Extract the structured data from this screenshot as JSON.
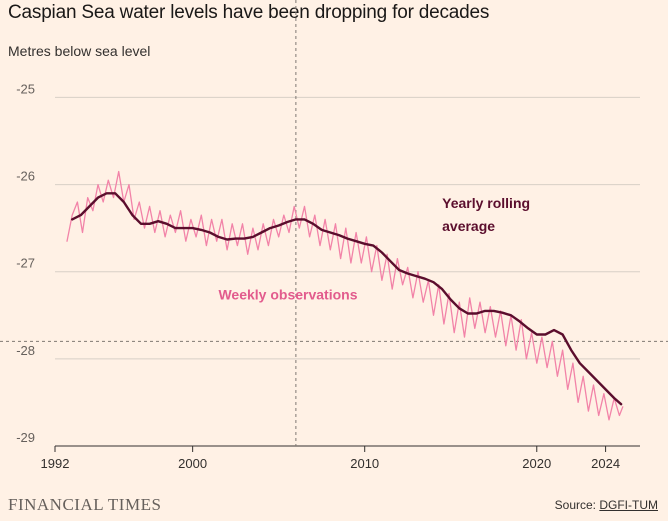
{
  "chart_data": {
    "type": "line",
    "title": "Caspian Sea water levels have been dropping for decades",
    "ylabel": "Metres below sea level",
    "xlim": [
      1992,
      2026
    ],
    "ylim": [
      -29,
      -24.8
    ],
    "yticks": [
      -25,
      -26,
      -27,
      -28,
      -29
    ],
    "xticks": [
      1992,
      2000,
      2010,
      2020,
      2024
    ],
    "grid": true,
    "reference_lines": {
      "x": 2006.0,
      "y": -27.8
    },
    "series": [
      {
        "name": "Weekly observations",
        "color": "#f283a8",
        "x": [
          1992.7,
          1993.0,
          1993.3,
          1993.6,
          1993.9,
          1994.2,
          1994.5,
          1994.8,
          1995.1,
          1995.4,
          1995.7,
          1996.0,
          1996.3,
          1996.6,
          1996.9,
          1997.2,
          1997.5,
          1997.8,
          1998.1,
          1998.4,
          1998.7,
          1999.0,
          1999.3,
          1999.6,
          1999.9,
          2000.2,
          2000.5,
          2000.8,
          2001.1,
          2001.4,
          2001.7,
          2002.0,
          2002.3,
          2002.6,
          2002.9,
          2003.2,
          2003.5,
          2003.8,
          2004.1,
          2004.4,
          2004.7,
          2005.0,
          2005.3,
          2005.6,
          2005.9,
          2006.2,
          2006.5,
          2006.8,
          2007.1,
          2007.4,
          2007.7,
          2008.0,
          2008.3,
          2008.6,
          2008.9,
          2009.2,
          2009.5,
          2009.8,
          2010.1,
          2010.4,
          2010.7,
          2011.0,
          2011.3,
          2011.6,
          2011.9,
          2012.2,
          2012.5,
          2012.8,
          2013.1,
          2013.4,
          2013.7,
          2014.0,
          2014.3,
          2014.6,
          2014.9,
          2015.2,
          2015.5,
          2015.8,
          2016.1,
          2016.4,
          2016.7,
          2017.0,
          2017.3,
          2017.6,
          2017.9,
          2018.2,
          2018.5,
          2018.8,
          2019.1,
          2019.4,
          2019.7,
          2020.0,
          2020.3,
          2020.6,
          2020.9,
          2021.2,
          2021.5,
          2021.8,
          2022.1,
          2022.4,
          2022.7,
          2023.0,
          2023.3,
          2023.6,
          2023.9,
          2024.2,
          2024.5,
          2024.8,
          2025.0
        ],
        "values": [
          -26.65,
          -26.35,
          -26.2,
          -26.55,
          -26.15,
          -26.3,
          -26.0,
          -26.2,
          -25.95,
          -26.15,
          -25.85,
          -26.2,
          -26.0,
          -26.4,
          -26.2,
          -26.5,
          -26.25,
          -26.55,
          -26.3,
          -26.6,
          -26.35,
          -26.55,
          -26.3,
          -26.65,
          -26.4,
          -26.6,
          -26.35,
          -26.7,
          -26.4,
          -26.65,
          -26.4,
          -26.75,
          -26.45,
          -26.7,
          -26.45,
          -26.8,
          -26.5,
          -26.75,
          -26.45,
          -26.7,
          -26.4,
          -26.6,
          -26.35,
          -26.55,
          -26.25,
          -26.5,
          -26.25,
          -26.6,
          -26.35,
          -26.7,
          -26.4,
          -26.75,
          -26.45,
          -26.85,
          -26.5,
          -26.9,
          -26.55,
          -26.9,
          -26.6,
          -27.0,
          -26.7,
          -27.1,
          -26.8,
          -27.2,
          -26.85,
          -27.15,
          -26.95,
          -27.3,
          -27.0,
          -27.35,
          -27.1,
          -27.5,
          -27.15,
          -27.6,
          -27.25,
          -27.7,
          -27.35,
          -27.75,
          -27.3,
          -27.65,
          -27.35,
          -27.7,
          -27.4,
          -27.75,
          -27.45,
          -27.85,
          -27.5,
          -27.9,
          -27.55,
          -28.0,
          -27.7,
          -28.05,
          -27.75,
          -28.1,
          -27.8,
          -28.2,
          -27.9,
          -28.35,
          -28.05,
          -28.5,
          -28.2,
          -28.6,
          -28.3,
          -28.65,
          -28.4,
          -28.7,
          -28.45,
          -28.65,
          -28.55
        ]
      },
      {
        "name": "Yearly rolling average",
        "color": "#5b0e2d",
        "x": [
          1993.0,
          1993.5,
          1994.0,
          1994.5,
          1995.0,
          1995.5,
          1996.0,
          1996.5,
          1997.0,
          1997.5,
          1998.0,
          1998.5,
          1999.0,
          1999.5,
          2000.0,
          2000.5,
          2001.0,
          2001.5,
          2002.0,
          2002.5,
          2003.0,
          2003.5,
          2004.0,
          2004.5,
          2005.0,
          2005.5,
          2006.0,
          2006.5,
          2007.0,
          2007.5,
          2008.0,
          2008.5,
          2009.0,
          2009.5,
          2010.0,
          2010.5,
          2011.0,
          2011.5,
          2012.0,
          2012.5,
          2013.0,
          2013.5,
          2014.0,
          2014.5,
          2015.0,
          2015.5,
          2016.0,
          2016.5,
          2017.0,
          2017.5,
          2018.0,
          2018.5,
          2019.0,
          2019.5,
          2020.0,
          2020.5,
          2021.0,
          2021.5,
          2022.0,
          2022.5,
          2023.0,
          2023.5,
          2024.0,
          2024.5,
          2024.9
        ],
        "values": [
          -26.4,
          -26.35,
          -26.25,
          -26.15,
          -26.1,
          -26.1,
          -26.2,
          -26.35,
          -26.45,
          -26.45,
          -26.42,
          -26.45,
          -26.5,
          -26.5,
          -26.5,
          -26.52,
          -26.55,
          -26.6,
          -26.63,
          -26.62,
          -26.62,
          -26.6,
          -26.55,
          -26.5,
          -26.47,
          -26.43,
          -26.4,
          -26.4,
          -26.45,
          -26.52,
          -26.55,
          -26.58,
          -26.62,
          -26.65,
          -26.68,
          -26.7,
          -26.78,
          -26.88,
          -26.98,
          -27.02,
          -27.05,
          -27.08,
          -27.12,
          -27.2,
          -27.32,
          -27.42,
          -27.48,
          -27.48,
          -27.45,
          -27.45,
          -27.47,
          -27.5,
          -27.57,
          -27.65,
          -27.72,
          -27.72,
          -27.67,
          -27.72,
          -27.9,
          -28.05,
          -28.15,
          -28.25,
          -28.35,
          -28.45,
          -28.52
        ]
      }
    ],
    "annotations": [
      {
        "text": "Yearly rolling",
        "x": 2014.5,
        "y": -26.27,
        "color": "#5b0e2d"
      },
      {
        "text": "average",
        "x": 2014.5,
        "y": -26.53,
        "color": "#5b0e2d"
      },
      {
        "text": "Weekly observations",
        "x": 2001.5,
        "y": -27.32,
        "color": "#e25b8d"
      }
    ]
  },
  "footer": {
    "brand": "FINANCIAL TIMES",
    "source_prefix": "Source: ",
    "source_link": "DGFI-TUM"
  }
}
